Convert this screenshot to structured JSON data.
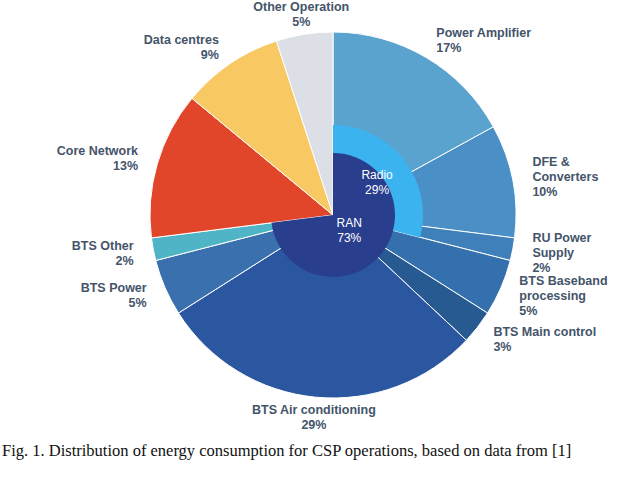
{
  "chart_data": {
    "type": "pie",
    "caption": "Fig. 1. Distribution of energy consumption for CSP operations, based on data from [1]",
    "categories": [
      "Power Amplifier",
      "DFE & Converters",
      "RU Power Supply",
      "BTS Baseband processing",
      "BTS Main control",
      "BTS Air conditioning",
      "BTS Power",
      "BTS Other",
      "Core Network",
      "Data centres",
      "Other Operation"
    ],
    "values": [
      17,
      10,
      2,
      5,
      3,
      29,
      5,
      2,
      13,
      9,
      5
    ],
    "value_labels": [
      "17%",
      "10%",
      "2%",
      "5%",
      "3%",
      "29%",
      "5%",
      "2%",
      "13%",
      "9%",
      "5%"
    ],
    "colors": [
      "#5aa3cf",
      "#4a90c6",
      "#3f80ba",
      "#3470ad",
      "#285a92",
      "#2b56a0",
      "#3b70af",
      "#4fb5c6",
      "#e1462b",
      "#f8c862",
      "#dcdfe6"
    ],
    "data_labels": true,
    "groups": [
      {
        "name": "Radio",
        "value": 29,
        "value_label": "29%",
        "color": "#3bb3ef"
      },
      {
        "name": "RAN",
        "value": 73,
        "value_label": "73%",
        "color": "#2a3e8e"
      }
    ]
  }
}
